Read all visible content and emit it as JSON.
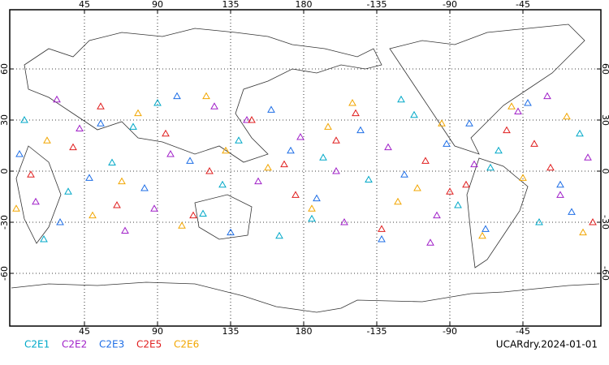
{
  "chart_data": {
    "type": "scatter",
    "xlim": [
      0,
      360
    ],
    "ylim": [
      -90,
      90
    ],
    "xticks": [
      45,
      90,
      135,
      180,
      {
        "value": 225,
        "label": "-135"
      },
      {
        "value": 270,
        "label": "-90"
      },
      {
        "value": 315,
        "label": "-45"
      }
    ],
    "yticks": [
      60,
      30,
      0,
      -30,
      -60
    ],
    "grid": true,
    "annotation": "UCARdry.2024-01-01",
    "series": [
      {
        "name": "C2E1",
        "color": "#00a8c8",
        "x": [
          8,
          35,
          62,
          90,
          118,
          140,
          165,
          192,
          220,
          248,
          275,
          300,
          325,
          350,
          20,
          75,
          130,
          185,
          240,
          295
        ],
        "y": [
          30,
          -12,
          5,
          40,
          -25,
          18,
          -38,
          8,
          -5,
          33,
          -20,
          12,
          -30,
          22,
          -40,
          26,
          -8,
          -28,
          42,
          2
        ]
      },
      {
        "name": "C2E2",
        "color": "#a020c8",
        "x": [
          15,
          42,
          70,
          98,
          125,
          152,
          178,
          205,
          232,
          258,
          285,
          312,
          338,
          355,
          28,
          88,
          145,
          200,
          262,
          330
        ],
        "y": [
          -18,
          25,
          -35,
          10,
          38,
          -6,
          20,
          -30,
          14,
          -42,
          4,
          35,
          -14,
          8,
          42,
          -22,
          30,
          0,
          -26,
          44
        ]
      },
      {
        "name": "C2E3",
        "color": "#1e6ee6",
        "x": [
          5,
          30,
          55,
          82,
          110,
          135,
          160,
          188,
          215,
          242,
          268,
          292,
          318,
          345,
          48,
          102,
          172,
          228,
          282,
          338
        ],
        "y": [
          10,
          -30,
          28,
          -10,
          6,
          -36,
          36,
          -16,
          24,
          -2,
          16,
          -34,
          40,
          -24,
          -4,
          44,
          12,
          -40,
          28,
          -8
        ]
      },
      {
        "name": "C2E5",
        "color": "#e01e1e",
        "x": [
          12,
          38,
          65,
          95,
          122,
          148,
          175,
          200,
          228,
          255,
          280,
          305,
          332,
          358,
          55,
          112,
          168,
          212,
          270,
          322
        ],
        "y": [
          -2,
          14,
          -20,
          22,
          0,
          30,
          -14,
          18,
          -34,
          6,
          -8,
          24,
          2,
          -30,
          38,
          -26,
          4,
          34,
          -12,
          16
        ]
      },
      {
        "name": "C2E6",
        "color": "#f2a600",
        "x": [
          22,
          50,
          78,
          105,
          132,
          158,
          185,
          210,
          238,
          265,
          290,
          315,
          342,
          3,
          68,
          120,
          195,
          250,
          308,
          352
        ],
        "y": [
          18,
          -26,
          34,
          -32,
          12,
          2,
          -22,
          40,
          -18,
          28,
          -38,
          -4,
          32,
          -22,
          -6,
          44,
          26,
          -10,
          38,
          -36
        ]
      }
    ]
  }
}
